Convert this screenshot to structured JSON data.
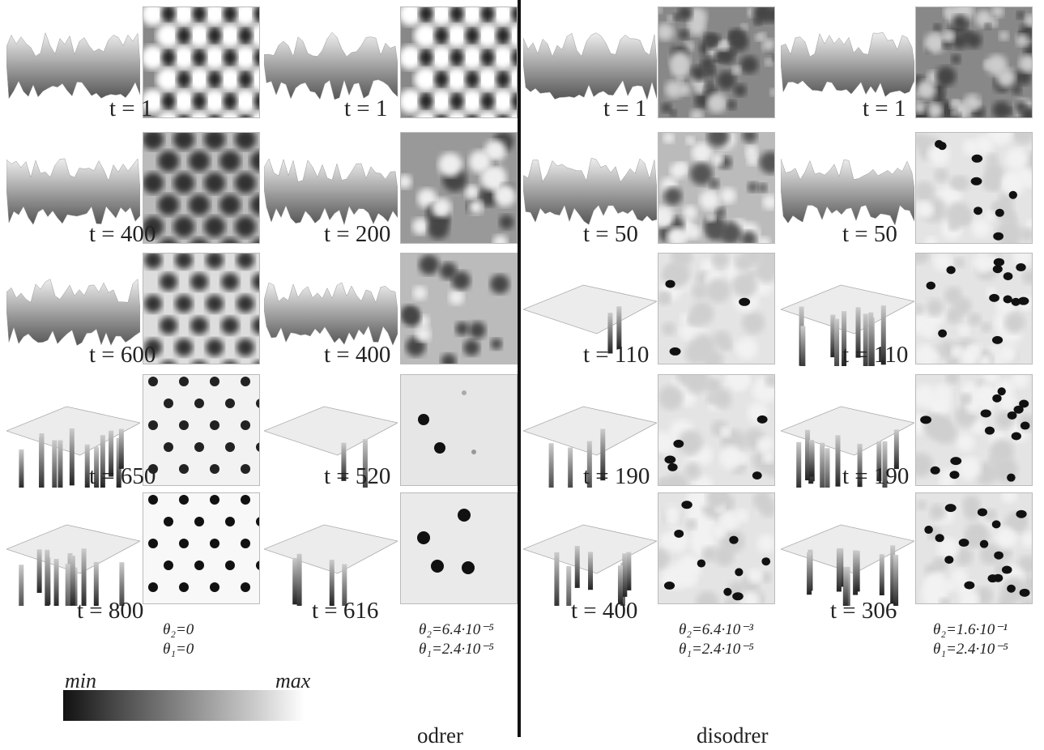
{
  "panels": [
    {
      "params": {
        "theta2": "θ₂=0",
        "theta1": "θ₁=0"
      },
      "times": [
        "t = 1",
        "t = 400",
        "t = 600",
        "t = 650",
        "t = 800"
      ]
    },
    {
      "params": {
        "theta2": "θ₂=6.4·10⁻⁵",
        "theta1": "θ₁=2.4·10⁻⁵"
      },
      "times": [
        "t = 1",
        "t = 200",
        "t = 400",
        "t = 520",
        "t = 616"
      ]
    },
    {
      "params": {
        "theta2": "θ₂=6.4·10⁻³",
        "theta1": "θ₁=2.4·10⁻⁵"
      },
      "times": [
        "t = 1",
        "t = 50",
        "t = 110",
        "t = 190",
        "t = 400"
      ]
    },
    {
      "params": {
        "theta2": "θ₂=1.6·10⁻¹",
        "theta1": "θ₁=2.4·10⁻⁵"
      },
      "times": [
        "t = 1",
        "t = 50",
        "t = 110",
        "t = 190",
        "t = 306"
      ]
    }
  ],
  "colorbar": {
    "min": "min",
    "max": "max"
  },
  "captions": {
    "order": "odrer",
    "disorder": "disodrer"
  }
}
